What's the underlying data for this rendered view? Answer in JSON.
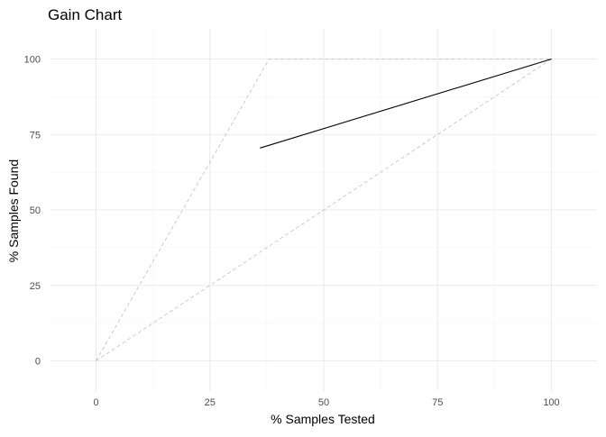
{
  "chart_data": {
    "type": "line",
    "title": "Gain Chart",
    "xlabel": "% Samples Tested",
    "ylabel": "% Samples Found",
    "xlim": [
      -10,
      110
    ],
    "ylim": [
      -10,
      110
    ],
    "x_ticks": [
      0,
      25,
      50,
      75,
      100
    ],
    "y_ticks": [
      0,
      25,
      50,
      75,
      100
    ],
    "x_tick_labels": [
      "0",
      "25",
      "50",
      "75",
      "100"
    ],
    "y_tick_labels": [
      "0",
      "25",
      "50",
      "75",
      "100"
    ],
    "grid": true,
    "theme": "minimal",
    "series": [
      {
        "style": "solid",
        "color": "#000000",
        "x": [
          36,
          100
        ],
        "y": [
          70.5,
          100
        ]
      },
      {
        "style": "dashed",
        "color": "#bfbfbf",
        "x": [
          0,
          38,
          100
        ],
        "y": [
          0,
          100,
          100
        ]
      },
      {
        "style": "dashed",
        "color": "#bfbfbf",
        "x": [
          0,
          100
        ],
        "y": [
          0,
          100
        ]
      }
    ]
  }
}
